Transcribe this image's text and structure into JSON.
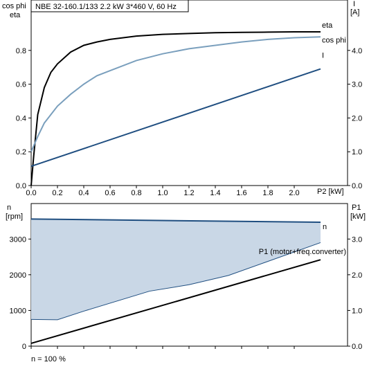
{
  "chart_data": [
    {
      "type": "line",
      "title": "NBE 32-160.1/133   2.2 kW   3*460 V, 60 Hz",
      "y_left_label": [
        "cos phi",
        "eta"
      ],
      "y_right_label": [
        "I",
        "[A]"
      ],
      "x_label": "P2 [kW]",
      "xlim": [
        0,
        2.2
      ],
      "ylim_left": [
        0,
        1.0
      ],
      "ylim_right": [
        0,
        5.0
      ],
      "x_ticks": [
        "0.0",
        "0.2",
        "0.4",
        "0.6",
        "0.8",
        "1.0",
        "1.2",
        "1.4",
        "1.6",
        "1.8",
        "2.0"
      ],
      "y_left_ticks": [
        "0.0",
        "0.2",
        "0.4",
        "0.6",
        "0.8"
      ],
      "y_right_ticks": [
        "0.0",
        "1.0",
        "2.0",
        "3.0",
        "4.0"
      ],
      "series": [
        {
          "name": "eta",
          "axis": "left",
          "color": "#000000",
          "points": [
            [
              0,
              0
            ],
            [
              0.02,
              0.18
            ],
            [
              0.05,
              0.42
            ],
            [
              0.1,
              0.58
            ],
            [
              0.15,
              0.67
            ],
            [
              0.2,
              0.72
            ],
            [
              0.3,
              0.79
            ],
            [
              0.4,
              0.83
            ],
            [
              0.5,
              0.85
            ],
            [
              0.6,
              0.865
            ],
            [
              0.8,
              0.885
            ],
            [
              1.0,
              0.895
            ],
            [
              1.2,
              0.9
            ],
            [
              1.4,
              0.905
            ],
            [
              1.6,
              0.907
            ],
            [
              1.8,
              0.908
            ],
            [
              2.0,
              0.91
            ],
            [
              2.2,
              0.91
            ]
          ]
        },
        {
          "name": "cos phi",
          "axis": "left",
          "color": "#7a9fbd",
          "points": [
            [
              0,
              0.2
            ],
            [
              0.05,
              0.29
            ],
            [
              0.1,
              0.37
            ],
            [
              0.2,
              0.47
            ],
            [
              0.3,
              0.54
            ],
            [
              0.4,
              0.6
            ],
            [
              0.5,
              0.65
            ],
            [
              0.6,
              0.68
            ],
            [
              0.8,
              0.74
            ],
            [
              1.0,
              0.78
            ],
            [
              1.2,
              0.81
            ],
            [
              1.4,
              0.83
            ],
            [
              1.6,
              0.85
            ],
            [
              1.8,
              0.865
            ],
            [
              2.0,
              0.875
            ],
            [
              2.2,
              0.88
            ]
          ]
        },
        {
          "name": "I",
          "axis": "right",
          "color": "#1f4e80",
          "points": [
            [
              0,
              0.57
            ],
            [
              2.2,
              3.45
            ]
          ]
        }
      ]
    },
    {
      "type": "line",
      "y_left_label": [
        "n",
        "[rpm]"
      ],
      "y_right_label": [
        "P1",
        "[kW]"
      ],
      "xlim": [
        0,
        2.2
      ],
      "ylim_left": [
        0,
        3800
      ],
      "ylim_right": [
        0,
        3.8
      ],
      "y_left_ticks": [
        "0",
        "1000",
        "2000",
        "3000"
      ],
      "y_right_ticks": [
        "0.0",
        "1.0",
        "2.0",
        "3.0"
      ],
      "series": [
        {
          "name": "n",
          "axis": "left",
          "color": "#1f4e80",
          "points": [
            [
              0,
              3560
            ],
            [
              2.2,
              3470
            ]
          ]
        },
        {
          "name": "n lower",
          "axis": "left",
          "color": "#1f4e80",
          "points": [
            [
              0,
              750
            ],
            [
              0.2,
              740
            ],
            [
              0.4,
              980
            ],
            [
              0.9,
              1540
            ],
            [
              1.2,
              1720
            ],
            [
              1.5,
              1980
            ],
            [
              2.2,
              2900
            ]
          ]
        },
        {
          "name": "P1 (motor+freq.converter)",
          "axis": "right",
          "color": "#000000",
          "points": [
            [
              0,
              0.08
            ],
            [
              2.2,
              2.42
            ]
          ]
        }
      ],
      "fill_color": "#c9d7e6",
      "footnote": "n = 100 %"
    }
  ]
}
